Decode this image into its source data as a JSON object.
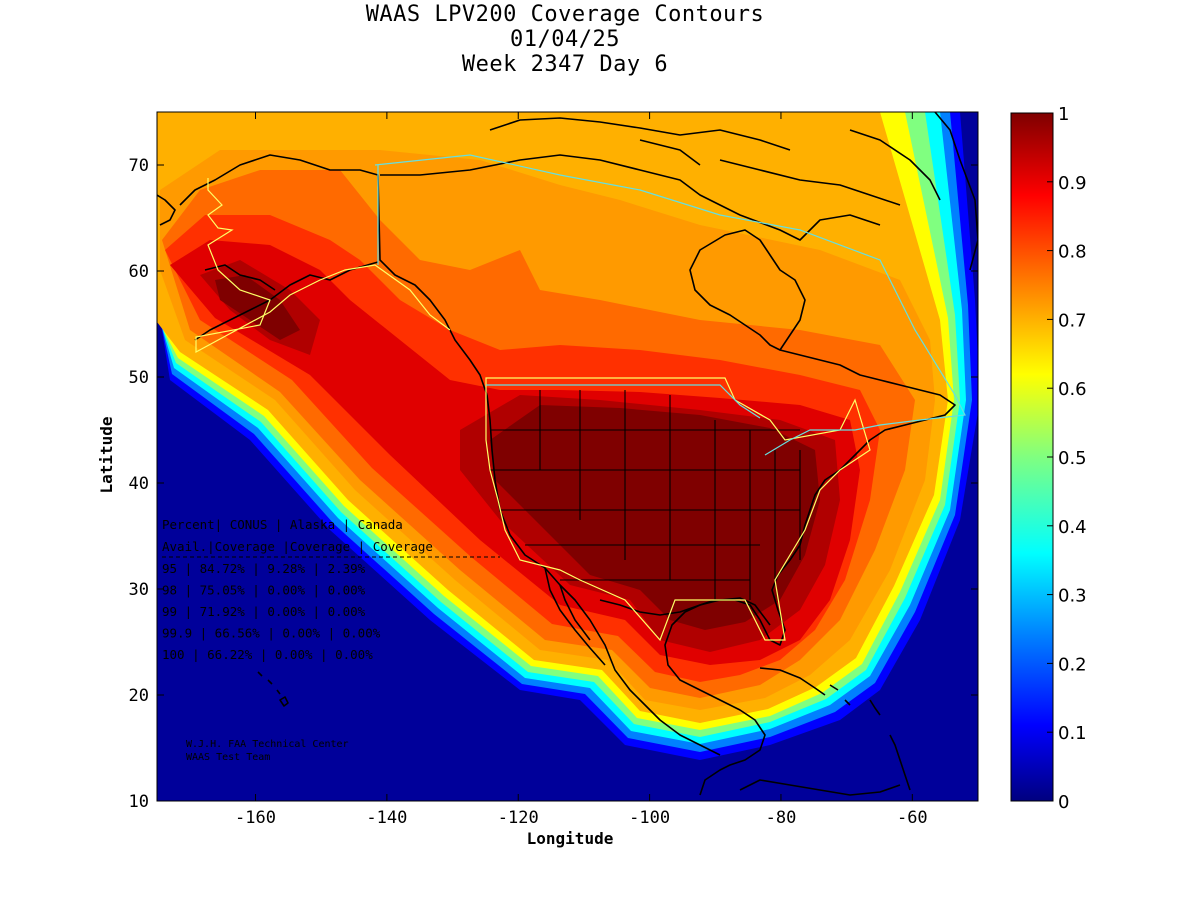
{
  "title": {
    "line1": "WAAS LPV200 Coverage Contours",
    "line2": "01/04/25",
    "line3": "Week 2347 Day 6"
  },
  "axes": {
    "xlabel": "Longitude",
    "ylabel": "Latitude",
    "xlim": [
      -175,
      -50
    ],
    "ylim": [
      10,
      75
    ],
    "xticks": [
      "-160",
      "-140",
      "-120",
      "-100",
      "-80",
      "-60"
    ],
    "xtick_values": [
      -160,
      -140,
      -120,
      -100,
      -80,
      -60
    ],
    "yticks": [
      "10",
      "20",
      "30",
      "40",
      "50",
      "60",
      "70"
    ],
    "ytick_values": [
      10,
      20,
      30,
      40,
      50,
      60,
      70
    ]
  },
  "colorbar": {
    "ticks": [
      "0",
      "0.1",
      "0.2",
      "0.3",
      "0.4",
      "0.5",
      "0.6",
      "0.7",
      "0.8",
      "0.9",
      "1"
    ],
    "tick_values": [
      0,
      0.1,
      0.2,
      0.3,
      0.4,
      0.5,
      0.6,
      0.7,
      0.8,
      0.9,
      1
    ],
    "colors": [
      "#00007f",
      "#0000ff",
      "#0080ff",
      "#00ffff",
      "#80ff80",
      "#ffff00",
      "#ff8000",
      "#ff0000",
      "#7f0000"
    ]
  },
  "coverage_table": {
    "header1": [
      "Percent",
      "CONUS",
      "Alaska",
      "Canada"
    ],
    "header2": [
      "Avail.",
      "Coverage",
      "Coverage",
      "Coverage"
    ],
    "rows": [
      [
        "95",
        "84.72%",
        "9.28%",
        "2.39%"
      ],
      [
        "98",
        "75.05%",
        "0.00%",
        "0.00%"
      ],
      [
        "99",
        "71.92%",
        "0.00%",
        "0.00%"
      ],
      [
        "99.9",
        "66.56%",
        "0.00%",
        "0.00%"
      ],
      [
        "100",
        "66.22%",
        "0.00%",
        "0.00%"
      ]
    ]
  },
  "credit": {
    "line1": "W.J.H. FAA Technical Center",
    "line2": "WAAS Test Team"
  },
  "colors": {
    "deep_blue": "#00007f",
    "dark_red": "#7f0000",
    "coastline": "#000000",
    "border_yellow": "#ffff66",
    "border_cyan": "#66e0e0"
  }
}
